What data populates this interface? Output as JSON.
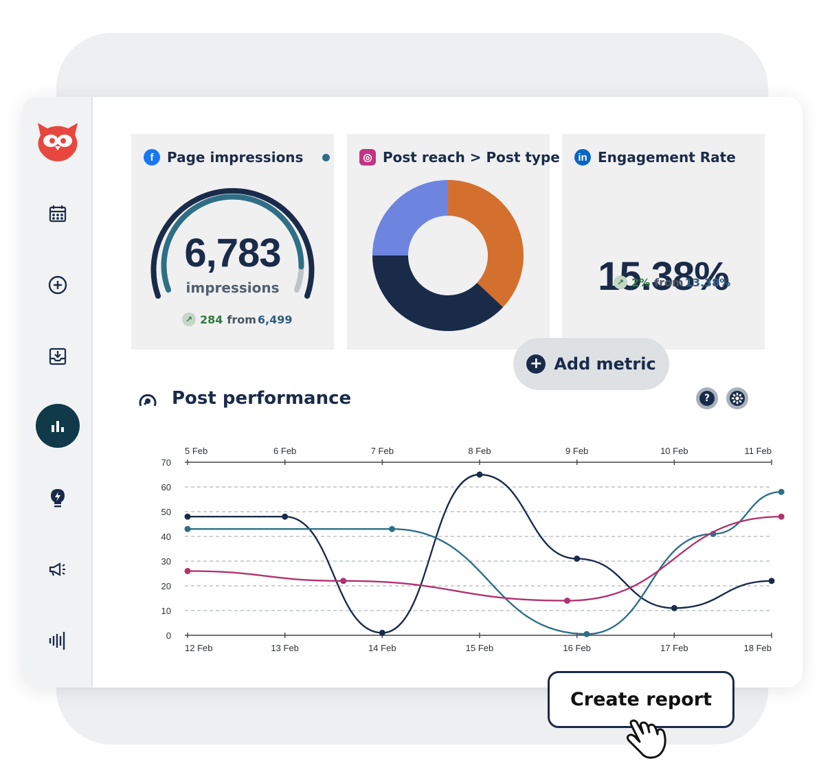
{
  "sidebar": {
    "items": [
      {
        "name": "calendar-icon"
      },
      {
        "name": "plus-circle-icon"
      },
      {
        "name": "inbox-icon"
      },
      {
        "name": "analytics-icon",
        "active": true
      },
      {
        "name": "lightbulb-icon"
      },
      {
        "name": "megaphone-icon"
      },
      {
        "name": "audio-bars-icon"
      }
    ]
  },
  "cards": {
    "impressions": {
      "title": "Page impressions",
      "network": "facebook",
      "value": "6,783",
      "unit": "impressions",
      "gauge_fraction": 0.91,
      "delta": "284",
      "from_text": "from",
      "ref": "6,499"
    },
    "reach": {
      "title": "Post reach > Post type",
      "network": "instagram",
      "donut": [
        {
          "fraction": 0.37,
          "color": "#d4702e"
        },
        {
          "fraction": 0.38,
          "color": "#1a2b4a"
        },
        {
          "fraction": 0.25,
          "color": "#6e85e0"
        }
      ]
    },
    "engagement": {
      "title": "Engagement Rate",
      "network": "linkedin",
      "value": "15.38%",
      "delta": "2%",
      "from_text": "from",
      "ref": "13.38%"
    }
  },
  "add_metric_label": "Add metric",
  "performance": {
    "title": "Post performance",
    "help_label": "?"
  },
  "create_report_label": "Create report",
  "colors": {
    "navy": "#1a2b4a",
    "teal": "#2f6f86",
    "magenta": "#b1326e",
    "orange": "#d4702e",
    "periwinkle": "#6e85e0"
  },
  "chart_data": {
    "type": "line",
    "x_top": [
      "5 Feb",
      "6 Feb",
      "7 Feb",
      "8 Feb",
      "9 Feb",
      "10 Feb",
      "11 Feb"
    ],
    "x_bottom": [
      "12 Feb",
      "13 Feb",
      "14 Feb",
      "15 Feb",
      "16 Feb",
      "17 Feb",
      "18 Feb"
    ],
    "y_ticks": [
      0,
      10,
      20,
      30,
      40,
      50,
      60,
      70
    ],
    "ylim": [
      0,
      70
    ],
    "grid": true,
    "series": [
      {
        "color": "#1a2b4a",
        "points": [
          [
            0,
            48
          ],
          [
            1,
            48
          ],
          [
            2,
            1
          ],
          [
            3,
            65
          ],
          [
            4,
            31
          ],
          [
            5,
            11
          ],
          [
            6,
            22
          ]
        ]
      },
      {
        "color": "#2f6f86",
        "points": [
          [
            0,
            43
          ],
          [
            2.1,
            43
          ],
          [
            4.1,
            0.5
          ],
          [
            5.4,
            41
          ],
          [
            6.1,
            58
          ]
        ]
      },
      {
        "color": "#b1326e",
        "points": [
          [
            0,
            26
          ],
          [
            1.6,
            22
          ],
          [
            3.9,
            14
          ],
          [
            6.1,
            48
          ]
        ]
      }
    ]
  }
}
